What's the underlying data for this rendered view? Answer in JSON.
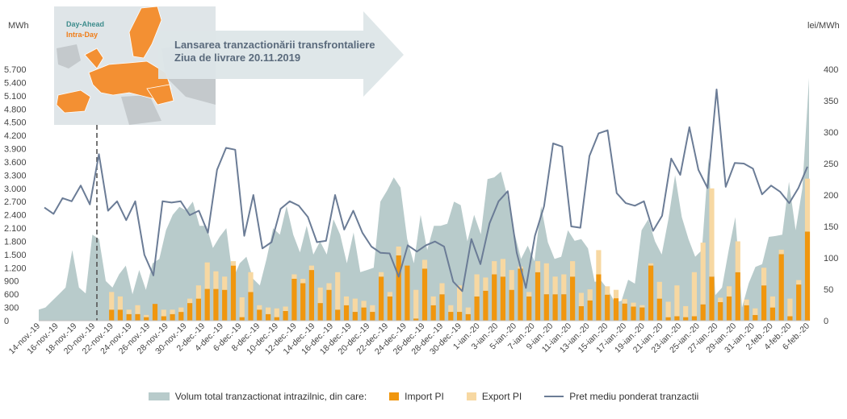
{
  "chart_data": {
    "type": "bar+area+line",
    "y_left_unit": "MWh",
    "y_right_unit": "lei/MWh",
    "y_left_ticks": [
      0,
      300,
      600,
      900,
      1200,
      1500,
      1800,
      2100,
      2400,
      2700,
      3000,
      3300,
      3600,
      3900,
      4200,
      4500,
      4800,
      5100,
      5400,
      5700
    ],
    "y_left_labels": [
      "0",
      "300",
      "600",
      "900",
      "1.200",
      "1.500",
      "1.800",
      "2.100",
      "2.400",
      "2.700",
      "3.000",
      "3.300",
      "3.600",
      "3.900",
      "4.200",
      "4.500",
      "4.800",
      "5.100",
      "5.400",
      "5.700"
    ],
    "y_right_ticks": [
      0,
      50,
      100,
      150,
      200,
      250,
      300,
      350,
      400
    ],
    "y_right_labels": [
      "0",
      "50",
      "100",
      "150",
      "200",
      "250",
      "300",
      "350",
      "400"
    ],
    "ylim_left": [
      0,
      5700
    ],
    "ylim_right": [
      0,
      400
    ],
    "x_tick_labels": [
      "14-nov.-19",
      "16-nov.-19",
      "18-nov.-19",
      "20-nov.-19",
      "22-nov.-19",
      "24-nov.-19",
      "26-nov.-19",
      "28-nov.-19",
      "30-nov.-19",
      "2-dec.-19",
      "4-dec.-19",
      "6-dec.-19",
      "8-dec.-19",
      "10-dec.-19",
      "12-dec.-19",
      "14-dec.-19",
      "16-dec.-19",
      "18-dec.-19",
      "20-dec.-19",
      "22-dec.-19",
      "24-dec.-19",
      "26-dec.-19",
      "28-dec.-19",
      "30-dec.-19",
      "1-ian.-20",
      "3-ian.-20",
      "5-ian.-20",
      "7-ian.-20",
      "9-ian.-20",
      "11-ian.-20",
      "13-ian.-20",
      "15-ian.-20",
      "17-ian.-20",
      "19-ian.-20",
      "21-ian.-20",
      "23-ian.-20",
      "25-ian.-20",
      "27-ian.-20",
      "29-ian.-20",
      "31-ian.-20",
      "2-feb.-20",
      "4-feb.-20",
      "6-feb.-20"
    ],
    "series": [
      {
        "name": "Volum total tranzactionat intrazilnic, din care:",
        "type": "area",
        "axis": "left",
        "color": "#b8cbcb",
        "values": [
          250,
          300,
          450,
          600,
          750,
          1600,
          750,
          620,
          1950,
          1850,
          900,
          750,
          1050,
          1250,
          600,
          1150,
          700,
          1300,
          1400,
          2050,
          2400,
          2580,
          2500,
          2700,
          2150,
          2150,
          1650,
          1900,
          2100,
          950,
          1300,
          1450,
          950,
          800,
          1400,
          2100,
          1950,
          2600,
          1950,
          1550,
          2150,
          1500,
          1800,
          1500,
          2300,
          1950,
          1300,
          2000,
          1100,
          1150,
          1200,
          2700,
          2950,
          3250,
          3020,
          1850,
          1300,
          2400,
          1600,
          2150,
          2150,
          2200,
          2700,
          2620,
          1800,
          2400,
          1960,
          3210,
          3250,
          3380,
          2800,
          2000,
          1400,
          1700,
          1350,
          2600,
          1780,
          1400,
          1450,
          2050,
          1810,
          1850,
          1640,
          880,
          900,
          700,
          420,
          450,
          930,
          840,
          2050,
          2300,
          1800,
          1500,
          2300,
          3300,
          2350,
          1850,
          1450,
          1600,
          3700,
          580,
          750,
          1600,
          2350,
          300,
          850,
          1220,
          1280,
          1900,
          1920,
          1950,
          3150,
          2050,
          3000,
          5500
        ]
      },
      {
        "name": "Import PI",
        "type": "bar",
        "axis": "left",
        "color": "#f0960e",
        "values": [
          0,
          0,
          0,
          0,
          0,
          0,
          0,
          0,
          250,
          250,
          150,
          150,
          80,
          380,
          100,
          150,
          200,
          400,
          500,
          720,
          720,
          700,
          1250,
          80,
          650,
          250,
          150,
          80,
          220,
          950,
          850,
          1150,
          400,
          700,
          250,
          350,
          200,
          300,
          200,
          1000,
          550,
          1480,
          1250,
          50,
          1180,
          350,
          600,
          200,
          200,
          150,
          550,
          680,
          1050,
          1000,
          700,
          1180,
          550,
          1100,
          600,
          600,
          600,
          1000,
          330,
          460,
          1050,
          590,
          510,
          390,
          320,
          300,
          1250,
          500,
          80,
          100,
          80,
          100,
          370,
          1000,
          420,
          550,
          1100,
          350,
          130,
          800,
          300,
          1510,
          100,
          820,
          2020
        ]
      },
      {
        "name": "Export PI",
        "type": "bar",
        "axis": "left",
        "color": "#f7d8a2",
        "values": [
          0,
          0,
          0,
          0,
          0,
          0,
          0,
          0,
          400,
          300,
          100,
          200,
          50,
          0,
          150,
          100,
          100,
          100,
          300,
          600,
          400,
          300,
          100,
          450,
          450,
          100,
          150,
          200,
          100,
          100,
          100,
          100,
          350,
          150,
          850,
          200,
          300,
          150,
          150,
          100,
          100,
          200,
          0,
          650,
          200,
          200,
          250,
          150,
          600,
          150,
          500,
          300,
          300,
          400,
          450,
          50,
          100,
          250,
          700,
          400,
          450,
          350,
          300,
          250,
          550,
          190,
          190,
          100,
          90,
          50,
          50,
          380,
          350,
          700,
          250,
          1000,
          1400,
          2000,
          100,
          230,
          700,
          130,
          150,
          400,
          250,
          100,
          400,
          100,
          1200,
          200,
          350
        ]
      },
      {
        "name": "Pret mediu ponderat tranzactii",
        "type": "line",
        "axis": "right",
        "color": "#6b7c96",
        "values": [
          180,
          170,
          195,
          190,
          215,
          185,
          265,
          175,
          190,
          160,
          190,
          105,
          72,
          190,
          188,
          190,
          168,
          175,
          140,
          240,
          275,
          272,
          135,
          200,
          115,
          125,
          178,
          190,
          183,
          165,
          125,
          127,
          200,
          145,
          175,
          140,
          118,
          108,
          107,
          70,
          120,
          110,
          120,
          126,
          118,
          62,
          47,
          130,
          90,
          155,
          190,
          206,
          108,
          52,
          135,
          182,
          282,
          277,
          150,
          148,
          262,
          298,
          303,
          203,
          187,
          183,
          190,
          143,
          167,
          258,
          232,
          308,
          240,
          211,
          368,
          213,
          251,
          250,
          242,
          201,
          215,
          205,
          187,
          211,
          245
        ]
      }
    ],
    "annotations": [
      {
        "text_lines": [
          "Lansarea tranzactionării transfrontaliere",
          "Ziua de livrare 20.11.2019"
        ]
      },
      {
        "text": "Day-Ahead",
        "color": "#3d8c8c"
      },
      {
        "text": "Intra-Day",
        "color": "#f07c16"
      }
    ]
  },
  "legend": {
    "area": "Volum total tranzactionat intrazilnic, din care:",
    "import": "Import PI",
    "export": "Export PI",
    "line": "Pret mediu ponderat tranzactii"
  }
}
